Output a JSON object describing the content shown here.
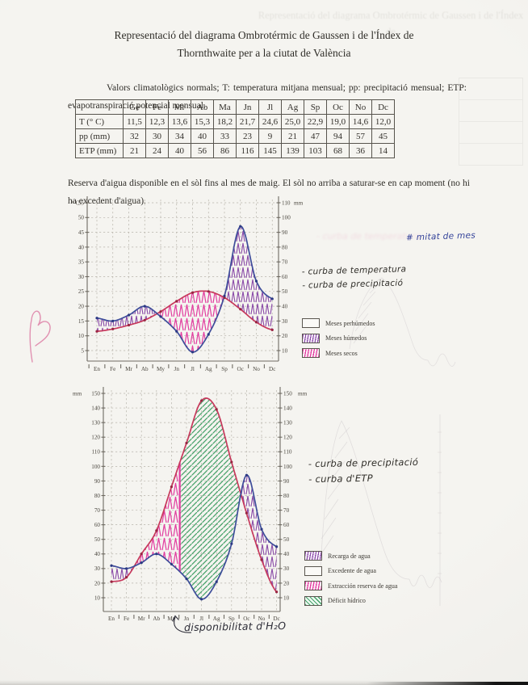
{
  "page": {
    "title_line1": "Representació del diagrama Ombrotérmic de Gaussen i de l'Índex de",
    "title_line2": "Thornthwaite per a la ciutat de València",
    "intro_text": "Valors climatològics normals; T: temperatura mitjana mensual; pp: precipitació mensual; ETP: evapotranspiració potencial mensual.",
    "reserve_text": "Reserva d'aigua disponible en el sòl fins al mes de maig. El sòl no arriba a saturar-se en cap moment (no hi ha excedent d'aigua)."
  },
  "table": {
    "columns": [
      "",
      "Ge",
      "Fe",
      "Mr",
      "Ab",
      "Ma",
      "Jn",
      "Jl",
      "Ag",
      "Sp",
      "Oc",
      "No",
      "Dc"
    ],
    "rows": [
      {
        "label": "T (° C)",
        "values": [
          "11,5",
          "12,3",
          "13,6",
          "15,3",
          "18,2",
          "21,7",
          "24,6",
          "25,0",
          "22,9",
          "19,0",
          "14,6",
          "12,0"
        ]
      },
      {
        "label": "pp (mm)",
        "values": [
          "32",
          "30",
          "34",
          "40",
          "33",
          "23",
          "9",
          "21",
          "47",
          "94",
          "57",
          "45"
        ]
      },
      {
        "label": "ETP (mm)",
        "values": [
          "21",
          "24",
          "40",
          "56",
          "86",
          "116",
          "145",
          "139",
          "103",
          "68",
          "36",
          "14"
        ]
      }
    ]
  },
  "annotations": {
    "top_note": "# mitat de mes",
    "chart1_temperature": "- curba de temperatura",
    "chart1_precipitation": "- curba de precipitació",
    "chart2_precipitation": "- curba de precipitació",
    "chart2_etp": "- curba d'ETP",
    "water_availability": "disponibilitat d'H₂O"
  },
  "colors": {
    "temperature_curve": "#c7395c",
    "precipitation_curve": "#3e4d9a",
    "purple_hatch": "#8a4ba8",
    "pink_hatch": "#e23da0",
    "green_hatch": "#45a169",
    "handwriting_pink": "#d6347c",
    "handwriting_blue": "#303f98"
  },
  "chart_data": [
    {
      "name": "ombrothermic-gaussen",
      "type": "line",
      "categories": [
        "En",
        "Fe",
        "Mr",
        "Ab",
        "My",
        "Jn",
        "Jl",
        "Ag",
        "Sp",
        "Oc",
        "No",
        "Dc"
      ],
      "series": [
        {
          "name": "curba de temperatura",
          "unit": "°C",
          "color": "#c7395c",
          "values": [
            11.5,
            12.3,
            13.6,
            15.3,
            18.2,
            21.7,
            24.6,
            25.0,
            22.9,
            19.0,
            14.6,
            12.0
          ]
        },
        {
          "name": "curba de precipitació",
          "unit": "mm",
          "color": "#3e4d9a",
          "values": [
            32,
            30,
            34,
            40,
            33,
            23,
            9,
            21,
            47,
            94,
            57,
            45
          ]
        }
      ],
      "left_axis": {
        "title": "° C",
        "min": 5,
        "max": 55,
        "step": 5
      },
      "right_axis": {
        "title": "mm",
        "min": 10,
        "max": 110,
        "step": 10
      },
      "grid": true,
      "legend": [
        {
          "label": "Meses perhúmedos",
          "swatch": "blank"
        },
        {
          "label": "Meses húmedos",
          "swatch": "purple-hatch"
        },
        {
          "label": "Meses secos",
          "swatch": "pink-hatch"
        }
      ]
    },
    {
      "name": "thornthwaite-water-balance",
      "type": "line",
      "categories": [
        "En",
        "Fe",
        "Mr",
        "Ab",
        "My",
        "Jn",
        "Jl",
        "Ag",
        "Sp",
        "Oc",
        "No",
        "Dc"
      ],
      "series": [
        {
          "name": "curba d'ETP",
          "unit": "mm",
          "color": "#c7395c",
          "values": [
            21,
            24,
            40,
            56,
            86,
            116,
            145,
            139,
            103,
            68,
            36,
            14
          ]
        },
        {
          "name": "curba de precipitació",
          "unit": "mm",
          "color": "#3e4d9a",
          "values": [
            32,
            30,
            34,
            40,
            33,
            23,
            9,
            21,
            47,
            94,
            57,
            45
          ]
        }
      ],
      "left_axis": {
        "title": "mm",
        "min": 10,
        "max": 150,
        "step": 10
      },
      "right_axis": {
        "title": "mm",
        "min": 10,
        "max": 150,
        "step": 10
      },
      "grid": true,
      "reserve_divider_month_index": 4.55,
      "legend": [
        {
          "label": "Recarga de agua",
          "swatch": "purple-hatch"
        },
        {
          "label": "Excedente de agua",
          "swatch": "blank"
        },
        {
          "label": "Extracción reserva de agua",
          "swatch": "pink-hatch"
        },
        {
          "label": "Déficit hídrico",
          "swatch": "green-hatch"
        }
      ]
    }
  ]
}
